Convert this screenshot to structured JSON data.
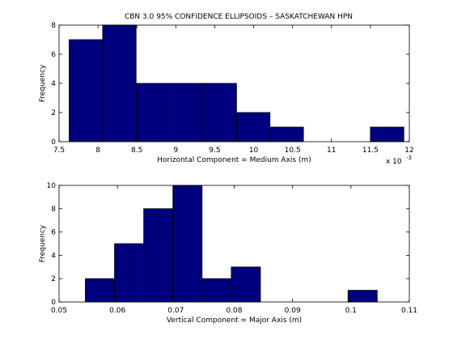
{
  "figure_title": "CBN 3.0 95% CONFIDENCE ELLIPSOIDS – SASKATCHEWAN HPN",
  "colors": {
    "bar_fill": "#00007f",
    "bar_edge": "#000000",
    "axes": "#000000",
    "background": "#ffffff"
  },
  "chart_data": [
    {
      "type": "bar",
      "title": "CBN 3.0 95% CONFIDENCE ELLIPSOIDS – SASKATCHEWAN HPN",
      "xlabel": "Horizontal Component = Medium Axis (m)",
      "ylabel": "Frequency",
      "x_exponent_base": "x 10",
      "x_exponent_power": "-3",
      "xlim": [
        7.5,
        12
      ],
      "ylim": [
        0,
        8
      ],
      "xticks": [
        7.5,
        8,
        8.5,
        9,
        9.5,
        10,
        10.5,
        11,
        11.5,
        12
      ],
      "xtick_labels": [
        "7.5",
        "8",
        "8.5",
        "9",
        "9.5",
        "10",
        "10.5",
        "11",
        "11.5",
        "12"
      ],
      "yticks": [
        0,
        2,
        4,
        6,
        8
      ],
      "ytick_labels": [
        "0",
        "2",
        "4",
        "6",
        "8"
      ],
      "bin_edges": [
        7.63,
        8.06,
        8.49,
        8.92,
        9.35,
        9.78,
        10.21,
        10.64,
        11.07,
        11.5,
        11.93
      ],
      "counts": [
        7,
        8,
        4,
        4,
        4,
        2,
        1,
        0,
        0,
        1
      ],
      "grid": false
    },
    {
      "type": "bar",
      "title": "",
      "xlabel": "Vertical Component = Major Axis (m)",
      "ylabel": "Frequency",
      "xlim": [
        0.05,
        0.11
      ],
      "ylim": [
        0,
        10
      ],
      "xticks": [
        0.05,
        0.06,
        0.07,
        0.08,
        0.09,
        0.1,
        0.11
      ],
      "xtick_labels": [
        "0.05",
        "0.06",
        "0.07",
        "0.08",
        "0.09",
        "0.1",
        "0.11"
      ],
      "yticks": [
        0,
        2,
        4,
        6,
        8,
        10
      ],
      "ytick_labels": [
        "0",
        "2",
        "4",
        "6",
        "8",
        "10"
      ],
      "bin_edges": [
        0.0545,
        0.0595,
        0.0645,
        0.0695,
        0.0745,
        0.0795,
        0.0845,
        0.0895,
        0.0945,
        0.0995,
        0.1045
      ],
      "counts": [
        2,
        5,
        8,
        10,
        2,
        3,
        0,
        0,
        0,
        1
      ],
      "grid": false
    }
  ]
}
